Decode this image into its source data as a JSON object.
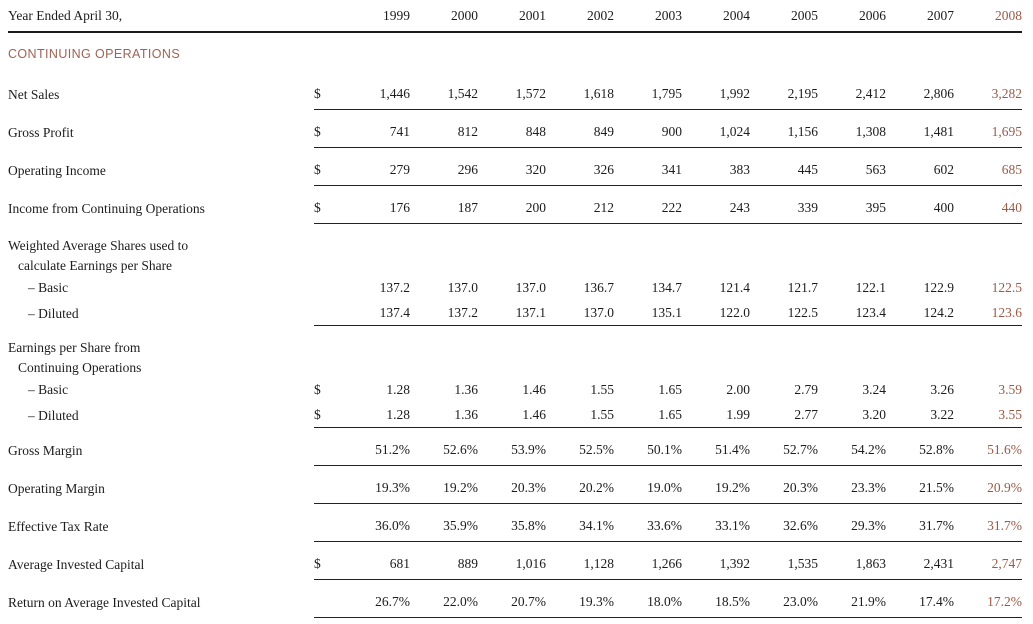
{
  "accent_color": "#9c5a46",
  "section_color": "#9f6354",
  "header": {
    "label": "Year Ended April 30,",
    "years": [
      "1999",
      "2000",
      "2001",
      "2002",
      "2003",
      "2004",
      "2005",
      "2006",
      "2007",
      "2008"
    ]
  },
  "section_title": "CONTINUING OPERATIONS",
  "rows": [
    {
      "type": "data",
      "label": "Net Sales",
      "dollar": "$",
      "indent": 0,
      "spacing": "roomy",
      "rule": true,
      "values": [
        "1,446",
        "1,542",
        "1,572",
        "1,618",
        "1,795",
        "1,992",
        "2,195",
        "2,412",
        "2,806",
        "3,282"
      ]
    },
    {
      "type": "data",
      "label": "Gross Profit",
      "dollar": "$",
      "indent": 0,
      "spacing": "roomy",
      "rule": true,
      "values": [
        "741",
        "812",
        "848",
        "849",
        "900",
        "1,024",
        "1,156",
        "1,308",
        "1,481",
        "1,695"
      ]
    },
    {
      "type": "data",
      "label": "Operating Income",
      "dollar": "$",
      "indent": 0,
      "spacing": "roomy",
      "rule": true,
      "values": [
        "279",
        "296",
        "320",
        "326",
        "341",
        "383",
        "445",
        "563",
        "602",
        "685"
      ]
    },
    {
      "type": "data",
      "label": "Income from Continuing Operations",
      "dollar": "$",
      "indent": 0,
      "spacing": "roomy",
      "rule": true,
      "values": [
        "176",
        "187",
        "200",
        "212",
        "222",
        "243",
        "339",
        "395",
        "400",
        "440"
      ]
    },
    {
      "type": "label",
      "label": "Weighted Average Shares used to",
      "indent": 0,
      "spacing": "grp0"
    },
    {
      "type": "label",
      "label": "calculate Earnings per Share",
      "indent": 1,
      "spacing": "grp1"
    },
    {
      "type": "data",
      "label": "– Basic",
      "dollar": "",
      "indent": 2,
      "spacing": "tight",
      "rule": false,
      "values": [
        "137.2",
        "137.0",
        "137.0",
        "136.7",
        "134.7",
        "121.4",
        "121.7",
        "122.1",
        "122.9",
        "122.5"
      ]
    },
    {
      "type": "data",
      "label": "– Diluted",
      "dollar": "",
      "indent": 2,
      "spacing": "tight",
      "rule": true,
      "values": [
        "137.4",
        "137.2",
        "137.1",
        "137.0",
        "135.1",
        "122.0",
        "122.5",
        "123.4",
        "124.2",
        "123.6"
      ]
    },
    {
      "type": "label",
      "label": "Earnings per Share from",
      "indent": 0,
      "spacing": "grp0"
    },
    {
      "type": "label",
      "label": "Continuing Operations",
      "indent": 1,
      "spacing": "grp1"
    },
    {
      "type": "data",
      "label": "– Basic",
      "dollar": "$",
      "indent": 2,
      "spacing": "tight",
      "rule": false,
      "values": [
        "1.28",
        "1.36",
        "1.46",
        "1.55",
        "1.65",
        "2.00",
        "2.79",
        "3.24",
        "3.26",
        "3.59"
      ]
    },
    {
      "type": "data",
      "label": "– Diluted",
      "dollar": "$",
      "indent": 2,
      "spacing": "tight",
      "rule": true,
      "values": [
        "1.28",
        "1.36",
        "1.46",
        "1.55",
        "1.65",
        "1.99",
        "2.77",
        "3.20",
        "3.22",
        "3.55"
      ]
    },
    {
      "type": "data",
      "label": "Gross Margin",
      "dollar": "",
      "indent": 0,
      "spacing": "roomy",
      "rule": true,
      "values": [
        "51.2%",
        "52.6%",
        "53.9%",
        "52.5%",
        "50.1%",
        "51.4%",
        "52.7%",
        "54.2%",
        "52.8%",
        "51.6%"
      ]
    },
    {
      "type": "data",
      "label": "Operating Margin",
      "dollar": "",
      "indent": 0,
      "spacing": "roomy",
      "rule": true,
      "values": [
        "19.3%",
        "19.2%",
        "20.3%",
        "20.2%",
        "19.0%",
        "19.2%",
        "20.3%",
        "23.3%",
        "21.5%",
        "20.9%"
      ]
    },
    {
      "type": "data",
      "label": "Effective Tax Rate",
      "dollar": "",
      "indent": 0,
      "spacing": "roomy",
      "rule": true,
      "values": [
        "36.0%",
        "35.9%",
        "35.8%",
        "34.1%",
        "33.6%",
        "33.1%",
        "32.6%",
        "29.3%",
        "31.7%",
        "31.7%"
      ]
    },
    {
      "type": "data",
      "label": "Average Invested Capital",
      "dollar": "$",
      "indent": 0,
      "spacing": "roomy",
      "rule": true,
      "values": [
        "681",
        "889",
        "1,016",
        "1,128",
        "1,266",
        "1,392",
        "1,535",
        "1,863",
        "2,431",
        "2,747"
      ]
    },
    {
      "type": "data",
      "label": "Return on Average Invested Capital",
      "dollar": "",
      "indent": 0,
      "spacing": "roomy",
      "rule": true,
      "values": [
        "26.7%",
        "22.0%",
        "20.7%",
        "19.3%",
        "18.0%",
        "18.5%",
        "23.0%",
        "21.9%",
        "17.4%",
        "17.2%"
      ]
    }
  ]
}
